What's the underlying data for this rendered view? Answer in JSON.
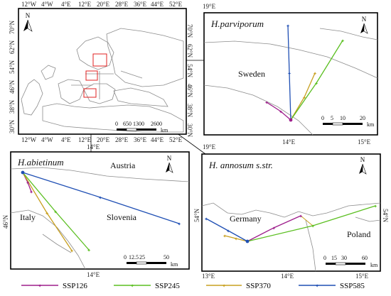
{
  "overview": {
    "lon_labels": [
      "12°W",
      "4°W",
      "4°E",
      "12°E",
      "20°E",
      "28°E",
      "36°E",
      "44°E",
      "52°E"
    ],
    "lat_labels": [
      "70°N",
      "62°N",
      "54°N",
      "46°N",
      "38°N",
      "30°N"
    ],
    "scale_labels": [
      "0",
      "650",
      "1300",
      "2600"
    ],
    "scale_unit": "km"
  },
  "panels": {
    "parviporum": {
      "title": "H.parviporum",
      "place": "Sweden",
      "lon_labels": [
        "19°E",
        "14°E",
        "15°E"
      ],
      "scale_labels": [
        "0",
        "5",
        "10",
        "20"
      ],
      "scale_unit": "km"
    },
    "abietinum": {
      "title": "H.abietinum",
      "places": [
        "Austria",
        "Italy",
        "Slovenia"
      ],
      "lon_top": "14°E",
      "lon_bottom": "14°E",
      "lat_label": "46°N",
      "scale_labels": [
        "0",
        "12.5",
        "25",
        "50"
      ],
      "scale_unit": "km"
    },
    "annosum": {
      "title": "H. annosum s.str.",
      "places": [
        "Germany",
        "Poland"
      ],
      "lon_labels": [
        "13°E",
        "14°E",
        "15°E"
      ],
      "lat_label": "54°N",
      "scale_labels": [
        "0",
        "15",
        "30",
        "60"
      ],
      "scale_unit": "km"
    }
  },
  "north_arrow_label": "N",
  "scenarios": [
    {
      "name": "SSP126",
      "color": "#9e1f8c"
    },
    {
      "name": "SSP245",
      "color": "#5bbf21"
    },
    {
      "name": "SSP370",
      "color": "#c8a020"
    },
    {
      "name": "SSP585",
      "color": "#1f4fb4"
    }
  ]
}
